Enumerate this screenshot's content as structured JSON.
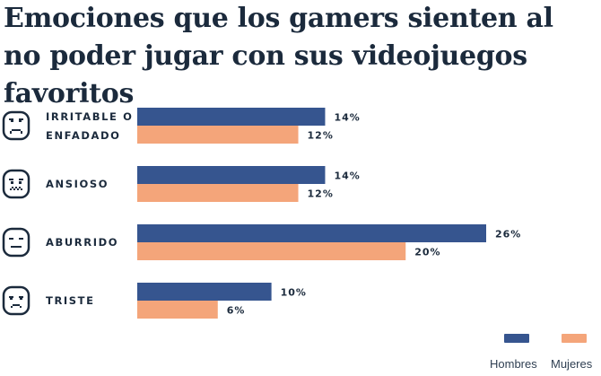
{
  "title": "Emociones que los gamers sienten al no poder jugar con sus videojuegos favoritos",
  "colors": {
    "hombres": "#36558f",
    "mujeres": "#f4a57a",
    "text": "#1b2a3c"
  },
  "legend": {
    "hombres_label": "Hombres",
    "mujeres_label": "Mujeres"
  },
  "chart_data": {
    "type": "bar",
    "orientation": "horizontal",
    "title": "Emociones que los gamers sienten al no poder jugar con sus videojuegos favoritos",
    "xlabel": "",
    "ylabel": "",
    "xlim": [
      0,
      26
    ],
    "grid": false,
    "legend_position": "bottom-right",
    "categories": [
      {
        "label_lines": [
          "IRRITABLE O",
          "ENFADADO"
        ],
        "icon": "angry-face-icon"
      },
      {
        "label_lines": [
          "ANSIOSO"
        ],
        "icon": "anxious-face-icon"
      },
      {
        "label_lines": [
          "ABURRIDO"
        ],
        "icon": "bored-face-icon"
      },
      {
        "label_lines": [
          "TRISTE"
        ],
        "icon": "sad-face-icon"
      }
    ],
    "series": [
      {
        "name": "Hombres",
        "values": [
          14,
          14,
          26,
          10
        ],
        "labels": [
          "14%",
          "14%",
          "26%",
          "10%"
        ]
      },
      {
        "name": "Mujeres",
        "values": [
          12,
          12,
          20,
          6
        ],
        "labels": [
          "12%",
          "12%",
          "20%",
          "6%"
        ]
      }
    ]
  }
}
